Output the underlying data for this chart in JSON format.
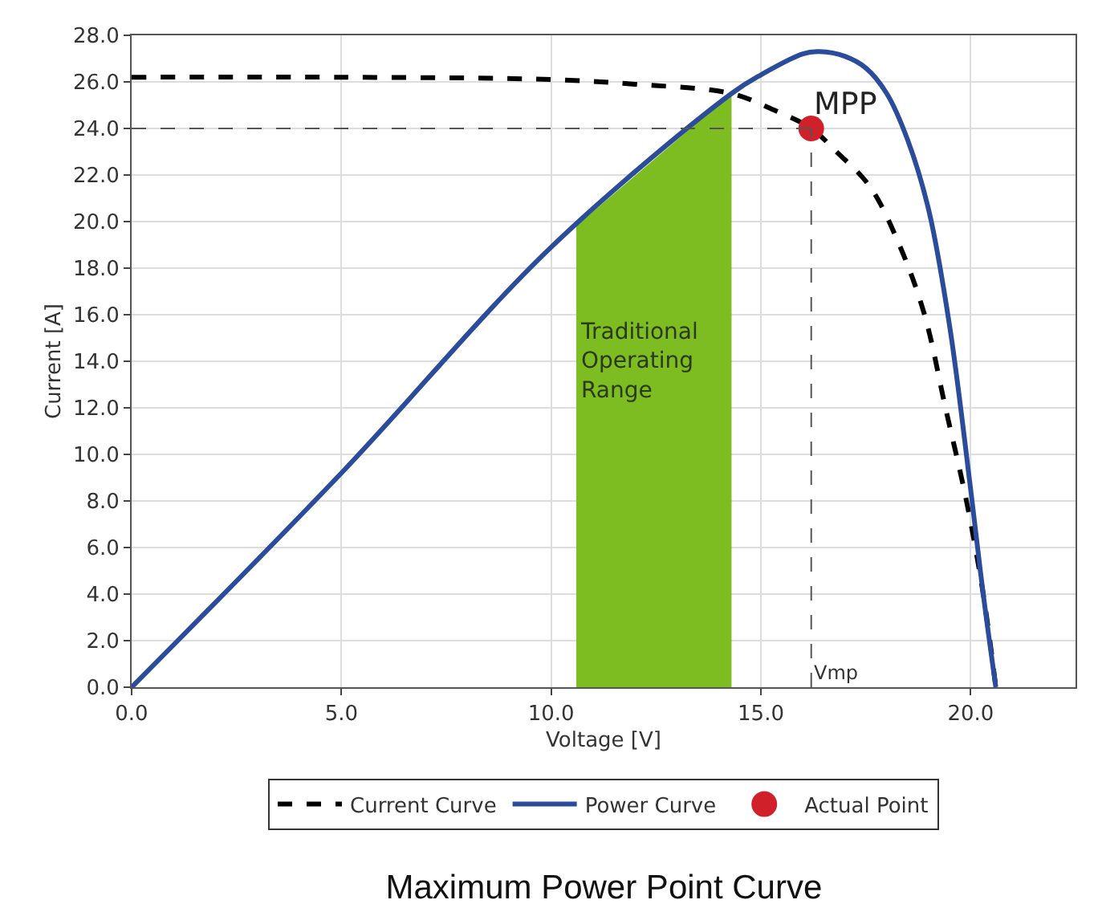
{
  "chart_data": {
    "type": "line",
    "title": "Maximum Power Point Curve",
    "xlabel": "Voltage [V]",
    "ylabel": "Current [A]",
    "xlim": [
      0,
      22.5
    ],
    "ylim": [
      0,
      28
    ],
    "xticks": [
      {
        "value": 0,
        "label": "0.0"
      },
      {
        "value": 5,
        "label": "5.0"
      },
      {
        "value": 10,
        "label": "10.0"
      },
      {
        "value": 15,
        "label": "15.0"
      },
      {
        "value": 20,
        "label": "20.0"
      }
    ],
    "yticks": [
      {
        "value": 0,
        "label": "0.0"
      },
      {
        "value": 2,
        "label": "2.0"
      },
      {
        "value": 4,
        "label": "4.0"
      },
      {
        "value": 6,
        "label": "6.0"
      },
      {
        "value": 8,
        "label": "8.0"
      },
      {
        "value": 10,
        "label": "10.0"
      },
      {
        "value": 12,
        "label": "12.0"
      },
      {
        "value": 14,
        "label": "14.0"
      },
      {
        "value": 16,
        "label": "16.0"
      },
      {
        "value": 18,
        "label": "18.0"
      },
      {
        "value": 20,
        "label": "20.0"
      },
      {
        "value": 22,
        "label": "22.0"
      },
      {
        "value": 24,
        "label": "24.0"
      },
      {
        "value": 26,
        "label": "26.0"
      },
      {
        "value": 28,
        "label": "28.0"
      }
    ],
    "grid": true,
    "legend": "bottom",
    "series": [
      {
        "name": "Current Curve",
        "line_style": "dashed",
        "color": "#000000",
        "x": [
          0,
          5,
          10,
          12,
          14.3,
          15.3,
          16.2,
          16.8,
          17.6,
          18.3,
          18.9,
          19.4,
          19.9,
          20.3,
          20.6
        ],
        "values": [
          26.2,
          26.2,
          26.1,
          25.9,
          25.5,
          24.8,
          24.0,
          23.0,
          21.5,
          19.0,
          16.0,
          12.0,
          8.0,
          4.0,
          0
        ]
      },
      {
        "name": "Power Curve",
        "line_style": "solid",
        "color": "#2b4c9b",
        "x": [
          0,
          5,
          10,
          14.3,
          15,
          16,
          16.4,
          17,
          17.5,
          18,
          18.5,
          19,
          19.5,
          20,
          20.3,
          20.6
        ],
        "values": [
          0,
          9.2,
          18.9,
          25.5,
          26.3,
          27.2,
          27.3,
          27.1,
          26.6,
          25.5,
          23.5,
          20.5,
          15.5,
          8.5,
          4.0,
          0
        ]
      },
      {
        "name": "Actual Point",
        "type": "scatter",
        "marker": "circle",
        "color": "#d0202a",
        "x": [
          16.2
        ],
        "values": [
          24.0
        ]
      }
    ],
    "ref_lines": [
      {
        "axis": "y",
        "value": 24.0,
        "label": null,
        "color": "#555555",
        "line_style": "dashed"
      },
      {
        "axis": "x",
        "value": 16.2,
        "label": "Vmp",
        "color": "#555555",
        "line_style": "dashed"
      }
    ],
    "bands": [
      {
        "axis": "x",
        "from": 10.6,
        "to": 14.3,
        "label": "Traditional\nOperating\nRange",
        "color": "#7dbd22"
      }
    ],
    "annotations": [
      {
        "text": "MPP",
        "x": 16.2,
        "y": 24.0
      }
    ]
  }
}
